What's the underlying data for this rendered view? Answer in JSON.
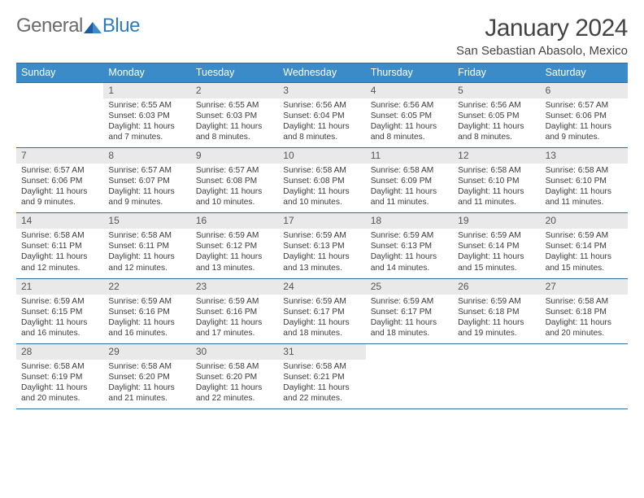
{
  "logo": {
    "text_general": "General",
    "text_blue": "Blue"
  },
  "title": "January 2024",
  "subtitle": "San Sebastian Abasolo, Mexico",
  "header_bg": "#3b8bc8",
  "border_color": "#2a6ea3",
  "daynum_bg": "#e9e9e9",
  "day_names": [
    "Sunday",
    "Monday",
    "Tuesday",
    "Wednesday",
    "Thursday",
    "Friday",
    "Saturday"
  ],
  "weeks": [
    [
      {
        "blank": true
      },
      {
        "n": "1",
        "sr": "Sunrise: 6:55 AM",
        "ss": "Sunset: 6:03 PM",
        "d1": "Daylight: 11 hours",
        "d2": "and 7 minutes."
      },
      {
        "n": "2",
        "sr": "Sunrise: 6:55 AM",
        "ss": "Sunset: 6:03 PM",
        "d1": "Daylight: 11 hours",
        "d2": "and 8 minutes."
      },
      {
        "n": "3",
        "sr": "Sunrise: 6:56 AM",
        "ss": "Sunset: 6:04 PM",
        "d1": "Daylight: 11 hours",
        "d2": "and 8 minutes."
      },
      {
        "n": "4",
        "sr": "Sunrise: 6:56 AM",
        "ss": "Sunset: 6:05 PM",
        "d1": "Daylight: 11 hours",
        "d2": "and 8 minutes."
      },
      {
        "n": "5",
        "sr": "Sunrise: 6:56 AM",
        "ss": "Sunset: 6:05 PM",
        "d1": "Daylight: 11 hours",
        "d2": "and 8 minutes."
      },
      {
        "n": "6",
        "sr": "Sunrise: 6:57 AM",
        "ss": "Sunset: 6:06 PM",
        "d1": "Daylight: 11 hours",
        "d2": "and 9 minutes."
      }
    ],
    [
      {
        "n": "7",
        "sr": "Sunrise: 6:57 AM",
        "ss": "Sunset: 6:06 PM",
        "d1": "Daylight: 11 hours",
        "d2": "and 9 minutes."
      },
      {
        "n": "8",
        "sr": "Sunrise: 6:57 AM",
        "ss": "Sunset: 6:07 PM",
        "d1": "Daylight: 11 hours",
        "d2": "and 9 minutes."
      },
      {
        "n": "9",
        "sr": "Sunrise: 6:57 AM",
        "ss": "Sunset: 6:08 PM",
        "d1": "Daylight: 11 hours",
        "d2": "and 10 minutes."
      },
      {
        "n": "10",
        "sr": "Sunrise: 6:58 AM",
        "ss": "Sunset: 6:08 PM",
        "d1": "Daylight: 11 hours",
        "d2": "and 10 minutes."
      },
      {
        "n": "11",
        "sr": "Sunrise: 6:58 AM",
        "ss": "Sunset: 6:09 PM",
        "d1": "Daylight: 11 hours",
        "d2": "and 11 minutes."
      },
      {
        "n": "12",
        "sr": "Sunrise: 6:58 AM",
        "ss": "Sunset: 6:10 PM",
        "d1": "Daylight: 11 hours",
        "d2": "and 11 minutes."
      },
      {
        "n": "13",
        "sr": "Sunrise: 6:58 AM",
        "ss": "Sunset: 6:10 PM",
        "d1": "Daylight: 11 hours",
        "d2": "and 11 minutes."
      }
    ],
    [
      {
        "n": "14",
        "sr": "Sunrise: 6:58 AM",
        "ss": "Sunset: 6:11 PM",
        "d1": "Daylight: 11 hours",
        "d2": "and 12 minutes."
      },
      {
        "n": "15",
        "sr": "Sunrise: 6:58 AM",
        "ss": "Sunset: 6:11 PM",
        "d1": "Daylight: 11 hours",
        "d2": "and 12 minutes."
      },
      {
        "n": "16",
        "sr": "Sunrise: 6:59 AM",
        "ss": "Sunset: 6:12 PM",
        "d1": "Daylight: 11 hours",
        "d2": "and 13 minutes."
      },
      {
        "n": "17",
        "sr": "Sunrise: 6:59 AM",
        "ss": "Sunset: 6:13 PM",
        "d1": "Daylight: 11 hours",
        "d2": "and 13 minutes."
      },
      {
        "n": "18",
        "sr": "Sunrise: 6:59 AM",
        "ss": "Sunset: 6:13 PM",
        "d1": "Daylight: 11 hours",
        "d2": "and 14 minutes."
      },
      {
        "n": "19",
        "sr": "Sunrise: 6:59 AM",
        "ss": "Sunset: 6:14 PM",
        "d1": "Daylight: 11 hours",
        "d2": "and 15 minutes."
      },
      {
        "n": "20",
        "sr": "Sunrise: 6:59 AM",
        "ss": "Sunset: 6:14 PM",
        "d1": "Daylight: 11 hours",
        "d2": "and 15 minutes."
      }
    ],
    [
      {
        "n": "21",
        "sr": "Sunrise: 6:59 AM",
        "ss": "Sunset: 6:15 PM",
        "d1": "Daylight: 11 hours",
        "d2": "and 16 minutes."
      },
      {
        "n": "22",
        "sr": "Sunrise: 6:59 AM",
        "ss": "Sunset: 6:16 PM",
        "d1": "Daylight: 11 hours",
        "d2": "and 16 minutes."
      },
      {
        "n": "23",
        "sr": "Sunrise: 6:59 AM",
        "ss": "Sunset: 6:16 PM",
        "d1": "Daylight: 11 hours",
        "d2": "and 17 minutes."
      },
      {
        "n": "24",
        "sr": "Sunrise: 6:59 AM",
        "ss": "Sunset: 6:17 PM",
        "d1": "Daylight: 11 hours",
        "d2": "and 18 minutes."
      },
      {
        "n": "25",
        "sr": "Sunrise: 6:59 AM",
        "ss": "Sunset: 6:17 PM",
        "d1": "Daylight: 11 hours",
        "d2": "and 18 minutes."
      },
      {
        "n": "26",
        "sr": "Sunrise: 6:59 AM",
        "ss": "Sunset: 6:18 PM",
        "d1": "Daylight: 11 hours",
        "d2": "and 19 minutes."
      },
      {
        "n": "27",
        "sr": "Sunrise: 6:58 AM",
        "ss": "Sunset: 6:18 PM",
        "d1": "Daylight: 11 hours",
        "d2": "and 20 minutes."
      }
    ],
    [
      {
        "n": "28",
        "sr": "Sunrise: 6:58 AM",
        "ss": "Sunset: 6:19 PM",
        "d1": "Daylight: 11 hours",
        "d2": "and 20 minutes."
      },
      {
        "n": "29",
        "sr": "Sunrise: 6:58 AM",
        "ss": "Sunset: 6:20 PM",
        "d1": "Daylight: 11 hours",
        "d2": "and 21 minutes."
      },
      {
        "n": "30",
        "sr": "Sunrise: 6:58 AM",
        "ss": "Sunset: 6:20 PM",
        "d1": "Daylight: 11 hours",
        "d2": "and 22 minutes."
      },
      {
        "n": "31",
        "sr": "Sunrise: 6:58 AM",
        "ss": "Sunset: 6:21 PM",
        "d1": "Daylight: 11 hours",
        "d2": "and 22 minutes."
      },
      {
        "blank": true
      },
      {
        "blank": true
      },
      {
        "blank": true
      }
    ]
  ]
}
